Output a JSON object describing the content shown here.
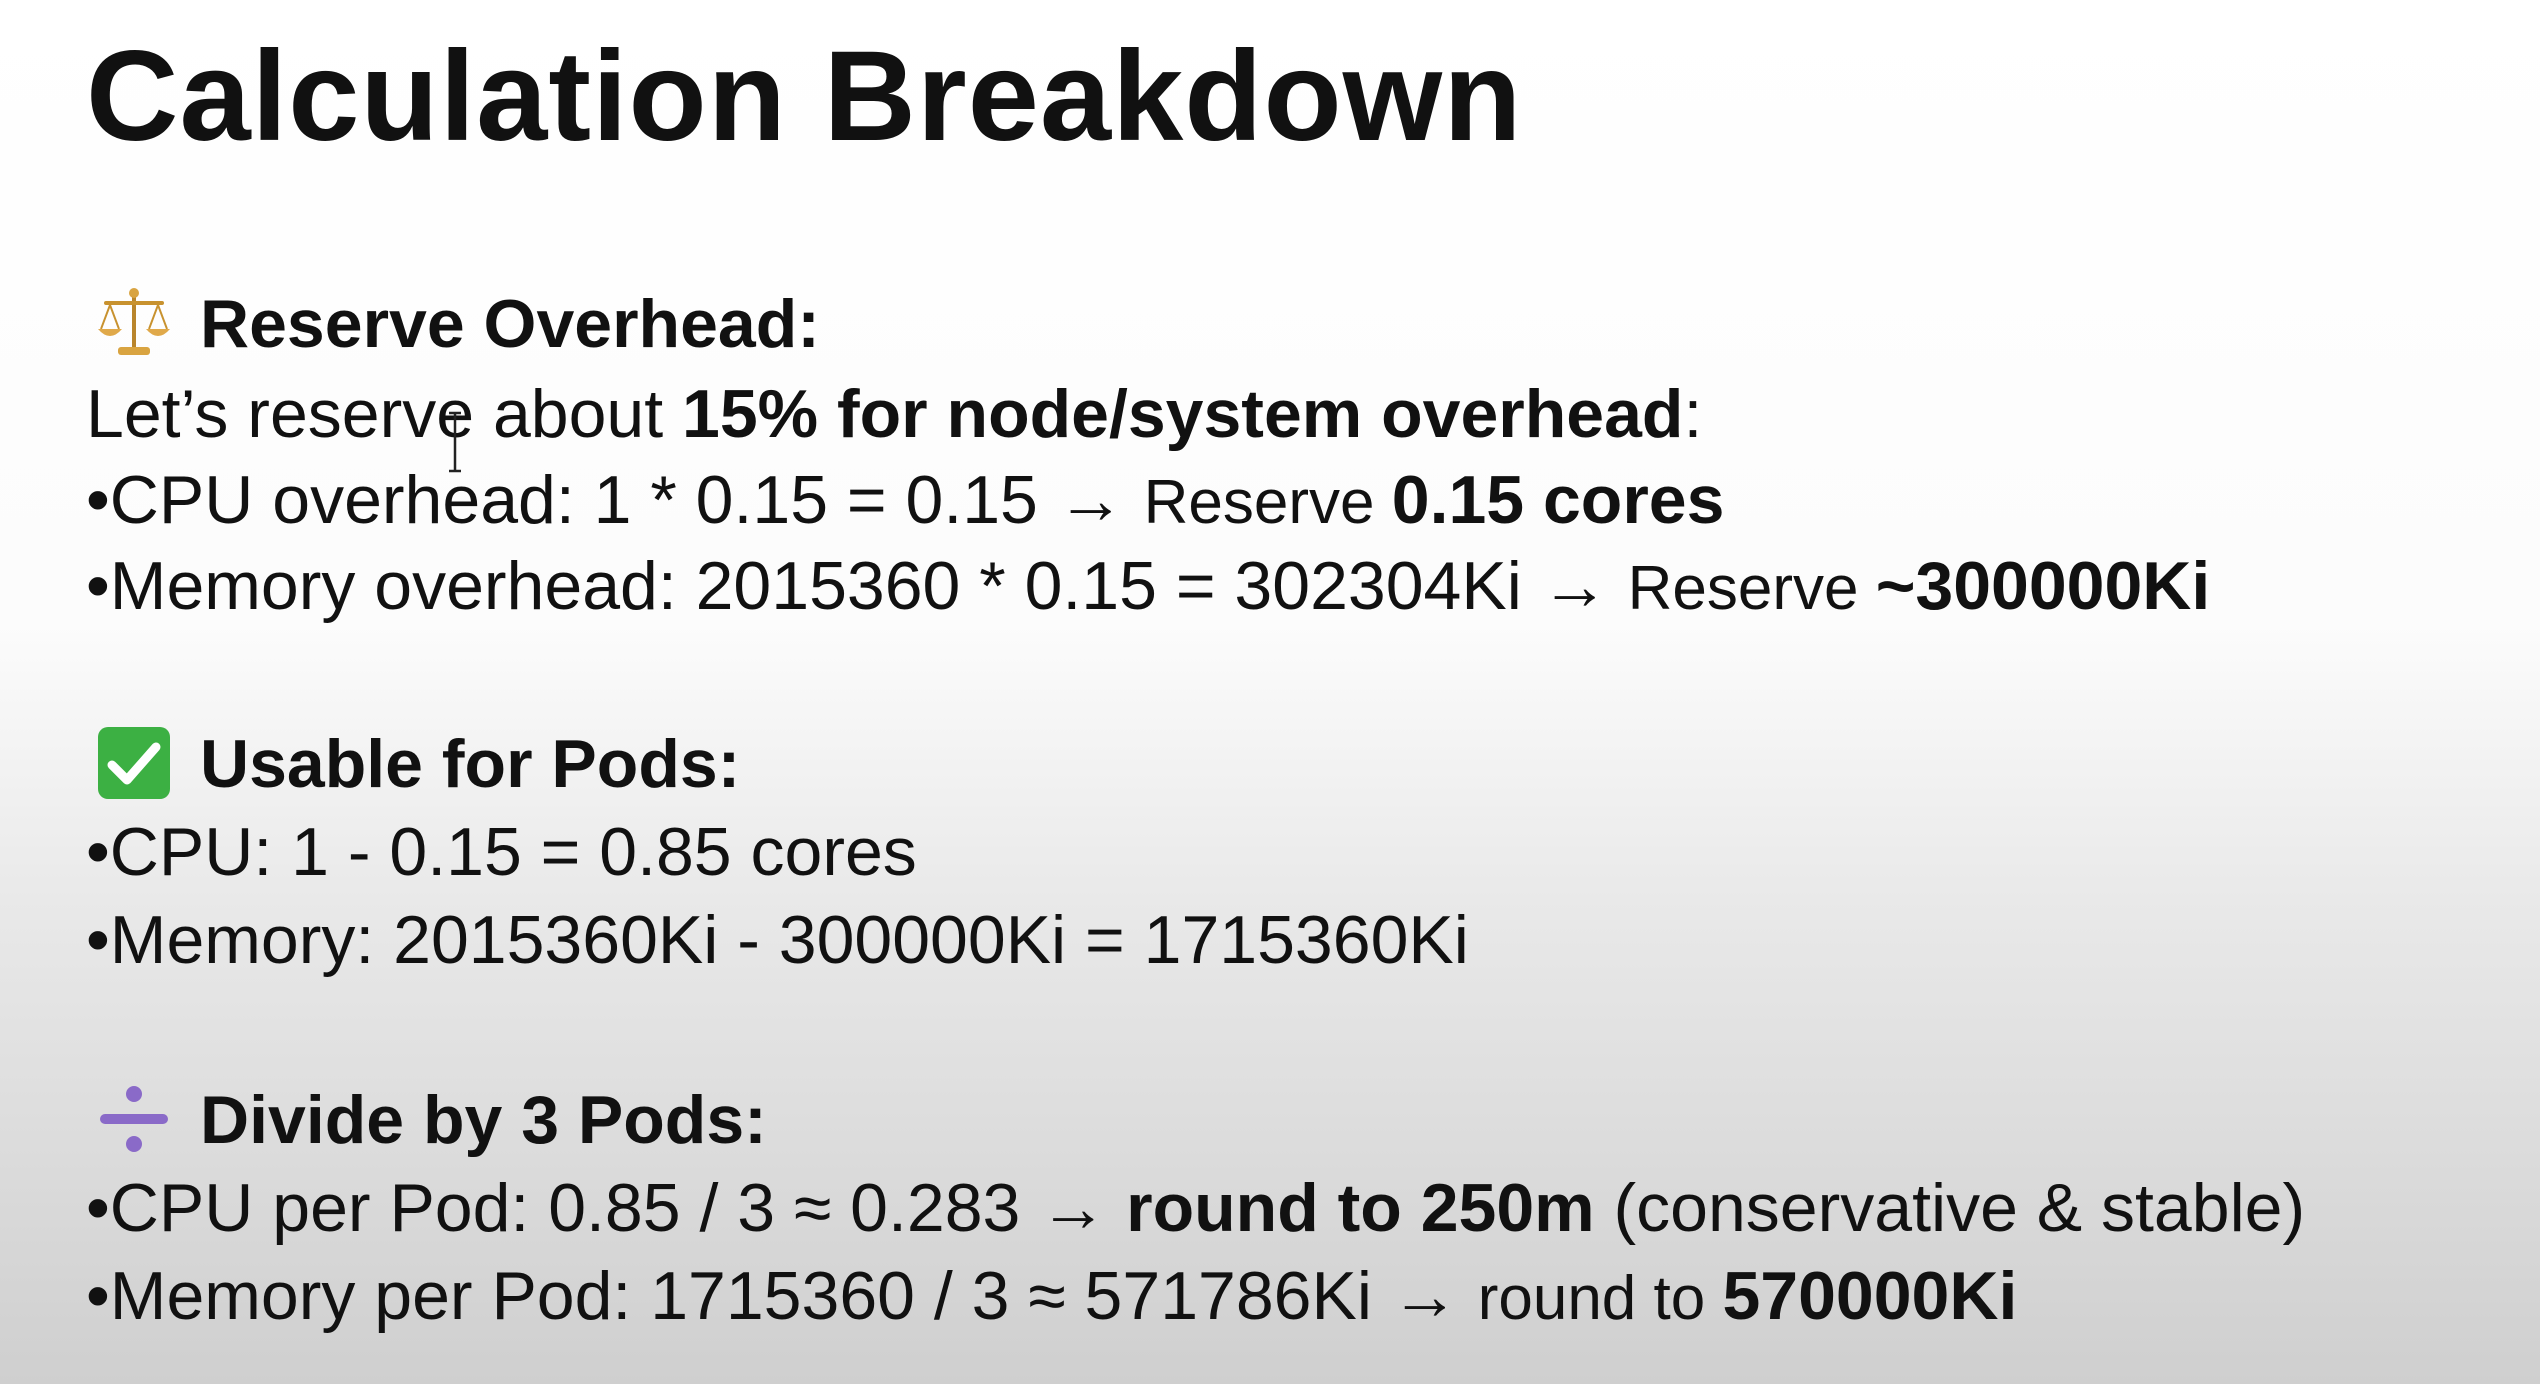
{
  "slide": {
    "title": "Calculation Breakdown",
    "sections": {
      "reserve": {
        "icon": "scales-icon",
        "heading": "Reserve Overhead:",
        "intro_pre": "Let’s reserve about ",
        "intro_bold": "15% for node/system overhead",
        "intro_post": ":",
        "cpu_line": "•CPU overhead: 1 * 0.15 = 0.15 → ",
        "cpu_reserve_label": "Reserve ",
        "cpu_reserve_value": "0.15 cores",
        "mem_line": "•Memory overhead: 2015360 * 0.15 = 302304Ki → ",
        "mem_reserve_label": "Reserve ",
        "mem_reserve_value": "~300000Ki"
      },
      "usable": {
        "icon": "check-mark-icon",
        "heading": "Usable for Pods:",
        "cpu_line": "•CPU: 1 - 0.15 = 0.85 cores",
        "mem_line": "•Memory: 2015360Ki - 300000Ki = 1715360Ki"
      },
      "divide": {
        "icon": "divide-icon",
        "heading": "Divide by 3 Pods:",
        "cpu_line": "•CPU per Pod: 0.85 / 3 ≈ 0.283 → ",
        "cpu_round_bold": "round to 250m",
        "cpu_round_post": " (conservative & stable)",
        "mem_line": "•Memory per Pod: 1715360 / 3 ≈ 571786Ki → ",
        "mem_round_label": "round to ",
        "mem_round_bold": "570000Ki"
      }
    }
  },
  "colors": {
    "text": "#111111",
    "check_green": "#3cb043",
    "divide_purple": "#8a6ac8",
    "scales_gold": "#d9a441"
  }
}
